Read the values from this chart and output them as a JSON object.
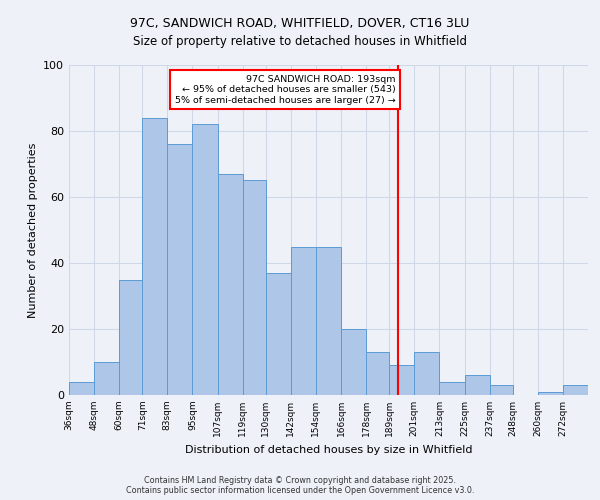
{
  "title_line1": "97C, SANDWICH ROAD, WHITFIELD, DOVER, CT16 3LU",
  "title_line2": "Size of property relative to detached houses in Whitfield",
  "xlabel": "Distribution of detached houses by size in Whitfield",
  "ylabel": "Number of detached properties",
  "bin_labels": [
    "36sqm",
    "48sqm",
    "60sqm",
    "71sqm",
    "83sqm",
    "95sqm",
    "107sqm",
    "119sqm",
    "130sqm",
    "142sqm",
    "154sqm",
    "166sqm",
    "178sqm",
    "189sqm",
    "201sqm",
    "213sqm",
    "225sqm",
    "237sqm",
    "248sqm",
    "260sqm",
    "272sqm"
  ],
  "bin_edges": [
    36,
    48,
    60,
    71,
    83,
    95,
    107,
    119,
    130,
    142,
    154,
    166,
    178,
    189,
    201,
    213,
    225,
    237,
    248,
    260,
    272
  ],
  "bar_heights": [
    4,
    10,
    35,
    84,
    76,
    82,
    67,
    65,
    37,
    45,
    45,
    20,
    13,
    9,
    13,
    4,
    6,
    3,
    0,
    1,
    3
  ],
  "bar_color": "#aec6e8",
  "bar_edgecolor": "#5b9bd5",
  "vline_x": 193,
  "vline_color": "red",
  "annotation_title": "97C SANDWICH ROAD: 193sqm",
  "annotation_line2": "← 95% of detached houses are smaller (543)",
  "annotation_line3": "5% of semi-detached houses are larger (27) →",
  "annotation_box_edgecolor": "red",
  "annotation_box_facecolor": "white",
  "ylim": [
    0,
    100
  ],
  "yticks": [
    0,
    20,
    40,
    60,
    80,
    100
  ],
  "grid_color": "#d0d8e8",
  "background_color": "#eef2f8",
  "plot_background": "#eef2f8",
  "footer_line1": "Contains HM Land Registry data © Crown copyright and database right 2025.",
  "footer_line2": "Contains public sector information licensed under the Open Government Licence v3.0."
}
